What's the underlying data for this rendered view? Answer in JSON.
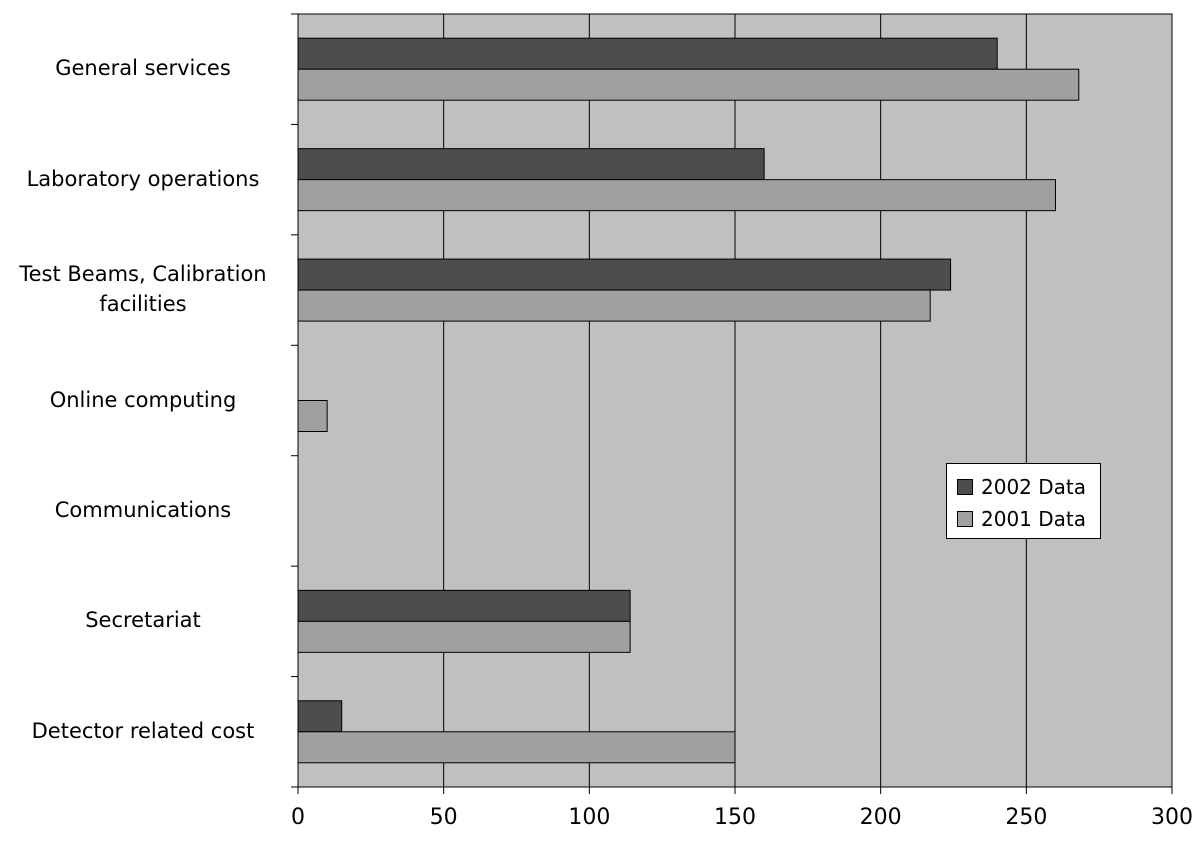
{
  "chart_data": {
    "type": "bar",
    "orientation": "horizontal",
    "categories": [
      "General services",
      "Laboratory operations",
      "Test Beams, Calibration facilities",
      "Online computing",
      "Communications",
      "Secretariat",
      "Detector related cost"
    ],
    "category_label_lines": [
      [
        "General services"
      ],
      [
        "Laboratory operations"
      ],
      [
        "Test Beams, Calibration",
        "facilities"
      ],
      [
        "Online computing"
      ],
      [
        "Communications"
      ],
      [
        "Secretariat"
      ],
      [
        "Detector related cost"
      ]
    ],
    "series": [
      {
        "name": "2002 Data",
        "color": "#4d4d4d",
        "values": [
          240,
          160,
          224,
          0,
          0,
          114,
          15
        ]
      },
      {
        "name": "2001 Data",
        "color": "#a0a0a0",
        "values": [
          268,
          260,
          217,
          10,
          0,
          114,
          150
        ]
      }
    ],
    "xlim": [
      0,
      300
    ],
    "xticks": [
      "0",
      "50",
      "100",
      "150",
      "200",
      "250",
      "300"
    ],
    "grid": "vertical",
    "plot_background": "#c0c0c0",
    "legend_position": "right",
    "title": "",
    "xlabel": "",
    "ylabel": ""
  },
  "legend": {
    "items": [
      {
        "label": "2002 Data",
        "color": "#4d4d4d"
      },
      {
        "label": "2001 Data",
        "color": "#a0a0a0"
      }
    ]
  }
}
